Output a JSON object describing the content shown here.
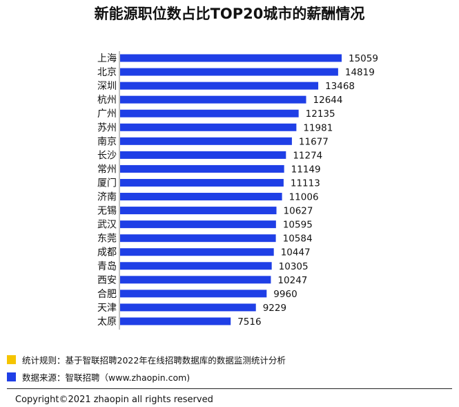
{
  "title": "新能源职位数占比TOP20城市的薪酬情况",
  "chart_data": {
    "type": "bar",
    "orientation": "horizontal",
    "title": "新能源职位数占比TOP20城市的薪酬情况",
    "categories": [
      "上海",
      "北京",
      "深圳",
      "杭州",
      "广州",
      "苏州",
      "南京",
      "长沙",
      "常州",
      "厦门",
      "济南",
      "无锡",
      "武汉",
      "东莞",
      "成都",
      "青岛",
      "西安",
      "合肥",
      "天津",
      "太原"
    ],
    "values": [
      15059,
      14819,
      13468,
      12644,
      12135,
      11981,
      11677,
      11274,
      11149,
      11113,
      11006,
      10627,
      10595,
      10584,
      10447,
      10305,
      10247,
      9960,
      9229,
      7516
    ],
    "xlim": [
      0,
      15059
    ],
    "grid": false,
    "bar_color": "#1f3fe6",
    "axis_color": "#888888"
  },
  "legend": [
    {
      "color": "#f5c400",
      "text": "统计规则：基于智联招聘2022年在线招聘数据库的数据监测统计分析"
    },
    {
      "color": "#1f3fe6",
      "text": "数据来源：智联招聘（www.zhaopin.com)"
    }
  ],
  "footer": {
    "copyright": "Copyright©2021 zhaopin all rights reserved"
  }
}
